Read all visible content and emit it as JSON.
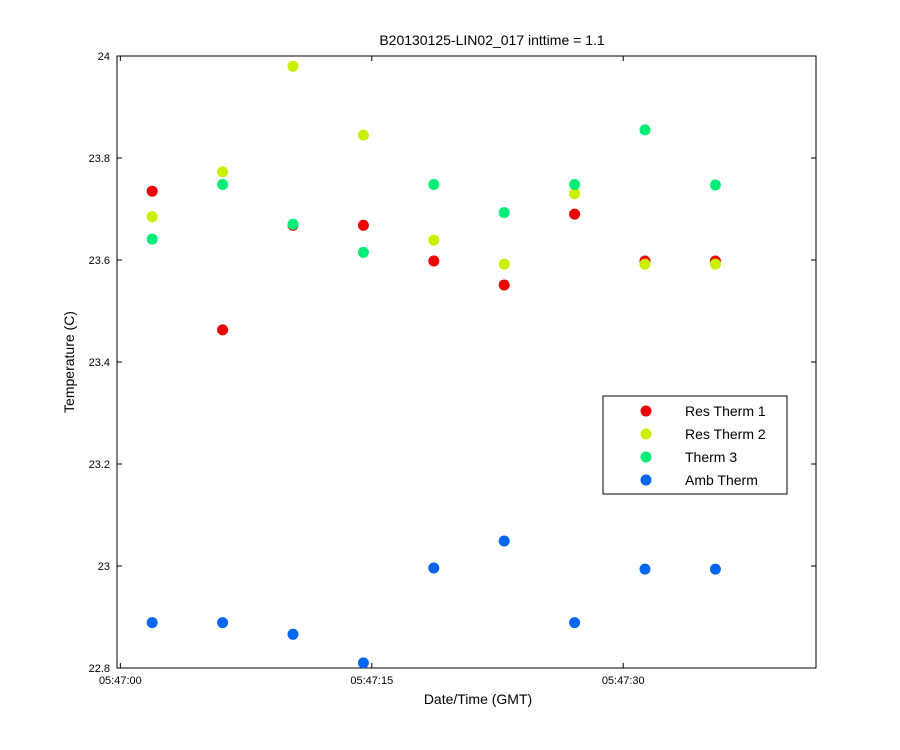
{
  "chart_data": {
    "type": "scatter",
    "title": "B20130125-LIN02_017 inttime = 1.1",
    "xlabel": "Date/Time (GMT)",
    "ylabel": "Temperature (C)",
    "x_unit": "time",
    "xlim": [
      "05:46:59.8",
      "05:47:41.5"
    ],
    "ylim": [
      22.8,
      24
    ],
    "x_ticks": [
      "05:47:00",
      "05:47:15",
      "05:47:30"
    ],
    "y_ticks": [
      "22.8",
      "23",
      "23.2",
      "23.4",
      "23.6",
      "23.8",
      "24"
    ],
    "grid": false,
    "legend_position": "right",
    "x": [
      "05:47:01.9",
      "05:47:06.1",
      "05:47:10.3",
      "05:47:14.5",
      "05:47:18.7",
      "05:47:22.9",
      "05:47:27.1",
      "05:47:31.3",
      "05:47:35.5"
    ],
    "series": [
      {
        "name": "Res Therm 1",
        "color": "#ee0000",
        "values": [
          23.735,
          23.463,
          23.668,
          23.668,
          23.598,
          23.551,
          23.69,
          23.598,
          23.598
        ]
      },
      {
        "name": "Res Therm 2",
        "color": "#ccee00",
        "values": [
          23.685,
          23.773,
          23.98,
          23.845,
          23.639,
          23.592,
          23.73,
          23.592,
          23.592
        ]
      },
      {
        "name": "Therm 3",
        "color": "#00ee77",
        "values": [
          23.641,
          23.748,
          23.67,
          23.615,
          23.748,
          23.693,
          23.748,
          23.855,
          23.747
        ]
      },
      {
        "name": "Amb Therm",
        "color": "#0066ee",
        "values": [
          22.889,
          22.889,
          22.866,
          22.81,
          22.996,
          23.049,
          22.889,
          22.994,
          22.994
        ]
      }
    ]
  }
}
